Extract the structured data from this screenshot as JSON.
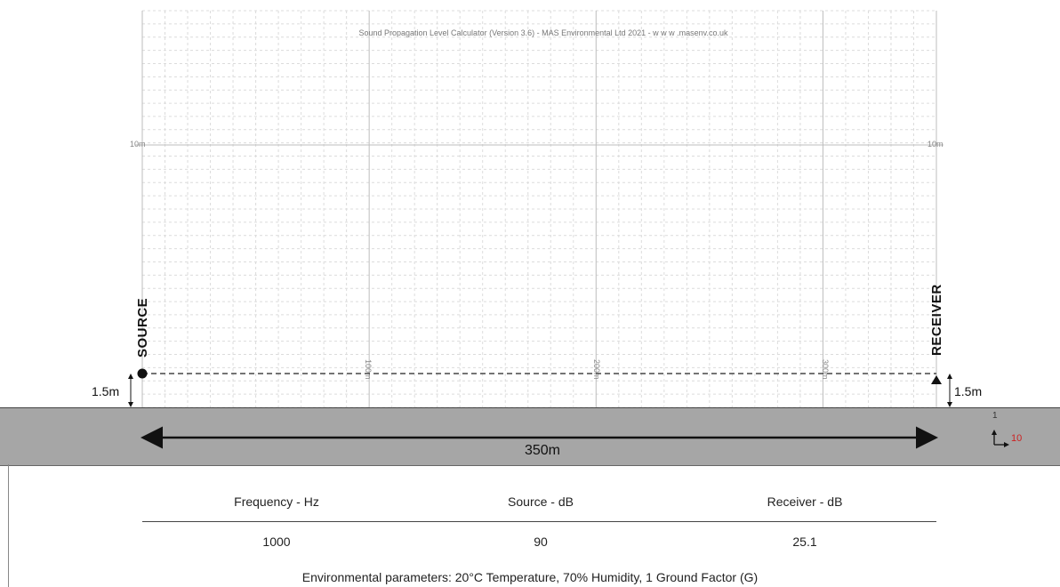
{
  "title": "Sound Propagation Level Calculator (Version 3.6) - MAS Environmental Ltd 2021 - w w w .masenv.co.uk",
  "grid": {
    "height_label_left": "10m",
    "height_label_right": "10m",
    "distance_markers": [
      "100m",
      "200m",
      "300m"
    ]
  },
  "source": {
    "label": "SOURCE",
    "height": "1.5m"
  },
  "receiver": {
    "label": "RECEIVER",
    "height": "1.5m"
  },
  "distance": {
    "label": "350m"
  },
  "scale": {
    "vertical": "1",
    "horizontal": "10"
  },
  "results": {
    "headers": [
      "Frequency - Hz",
      "Source - dB",
      "Receiver - dB"
    ],
    "values": [
      "1000",
      "90",
      "25.1"
    ],
    "environment_note": "Environmental parameters: 20°C Temperature, 70% Humidity, 1 Ground Factor (G)"
  },
  "colors": {
    "ground": "#a6a6a6",
    "grid_major": "#bdbdbd",
    "grid_minor": "#dcdcdc",
    "scale_red": "#cc2222"
  }
}
